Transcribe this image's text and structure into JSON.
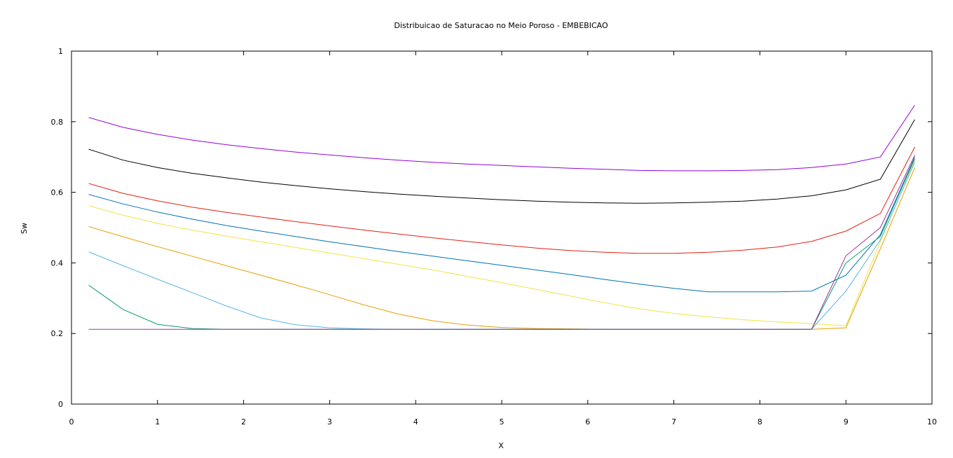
{
  "chart_data": {
    "type": "line",
    "title": "Distribuicao de Saturacao no Meio Poroso - EMBEBICAO",
    "xlabel": "X",
    "ylabel": "Sw",
    "xlim": [
      0,
      10
    ],
    "ylim": [
      0,
      1
    ],
    "x_ticks": [
      "0",
      "1",
      "2",
      "3",
      "4",
      "5",
      "6",
      "7",
      "8",
      "9",
      "10"
    ],
    "y_ticks": [
      "0",
      "0.2",
      "0.4",
      "0.6",
      "0.8",
      "1"
    ],
    "grid": false,
    "legend": "none",
    "x": [
      0.2,
      0.6,
      1.0,
      1.4,
      1.8,
      2.2,
      2.6,
      3.0,
      3.4,
      3.8,
      4.2,
      4.6,
      5.0,
      5.4,
      5.8,
      6.2,
      6.6,
      7.0,
      7.4,
      7.8,
      8.2,
      8.6,
      9.0,
      9.4,
      9.8
    ],
    "series": [
      {
        "color": "#9400d3",
        "values": [
          0.812,
          0.784,
          0.764,
          0.748,
          0.735,
          0.724,
          0.714,
          0.706,
          0.698,
          0.691,
          0.685,
          0.68,
          0.676,
          0.672,
          0.668,
          0.665,
          0.662,
          0.661,
          0.661,
          0.662,
          0.664,
          0.67,
          0.68,
          0.7,
          0.847
        ]
      },
      {
        "color": "#000000",
        "values": [
          0.722,
          0.691,
          0.67,
          0.654,
          0.641,
          0.629,
          0.619,
          0.61,
          0.602,
          0.595,
          0.589,
          0.584,
          0.579,
          0.575,
          0.572,
          0.57,
          0.569,
          0.57,
          0.572,
          0.575,
          0.581,
          0.59,
          0.607,
          0.637,
          0.806
        ]
      },
      {
        "color": "#e51e10",
        "values": [
          0.625,
          0.597,
          0.576,
          0.558,
          0.543,
          0.53,
          0.517,
          0.505,
          0.493,
          0.482,
          0.471,
          0.461,
          0.451,
          0.442,
          0.435,
          0.43,
          0.427,
          0.427,
          0.43,
          0.436,
          0.445,
          0.461,
          0.49,
          0.54,
          0.728
        ]
      },
      {
        "color": "#0072b2",
        "values": [
          0.594,
          0.567,
          0.544,
          0.524,
          0.506,
          0.49,
          0.475,
          0.46,
          0.446,
          0.432,
          0.419,
          0.406,
          0.393,
          0.38,
          0.367,
          0.353,
          0.34,
          0.328,
          0.318,
          0.318,
          0.318,
          0.32,
          0.365,
          0.48,
          0.7
        ]
      },
      {
        "color": "#f0e442",
        "values": [
          0.562,
          0.535,
          0.512,
          0.493,
          0.476,
          0.46,
          0.444,
          0.428,
          0.412,
          0.396,
          0.38,
          0.362,
          0.344,
          0.325,
          0.306,
          0.287,
          0.27,
          0.257,
          0.247,
          0.239,
          0.233,
          0.228,
          0.222,
          0.46,
          0.69
        ]
      },
      {
        "color": "#e69f00",
        "values": [
          0.503,
          0.474,
          0.446,
          0.419,
          0.392,
          0.365,
          0.338,
          0.31,
          0.281,
          0.255,
          0.236,
          0.224,
          0.217,
          0.214,
          0.213,
          0.212,
          0.212,
          0.212,
          0.212,
          0.212,
          0.212,
          0.212,
          0.216,
          0.44,
          0.67
        ]
      },
      {
        "color": "#56b4e9",
        "values": [
          0.431,
          0.392,
          0.354,
          0.316,
          0.278,
          0.244,
          0.225,
          0.216,
          0.213,
          0.212,
          0.212,
          0.212,
          0.212,
          0.212,
          0.212,
          0.212,
          0.212,
          0.212,
          0.212,
          0.212,
          0.212,
          0.212,
          0.32,
          0.465,
          0.685
        ]
      },
      {
        "color": "#009e73",
        "values": [
          0.337,
          0.268,
          0.226,
          0.214,
          0.212,
          0.212,
          0.212,
          0.212,
          0.212,
          0.212,
          0.212,
          0.212,
          0.212,
          0.212,
          0.212,
          0.212,
          0.212,
          0.212,
          0.212,
          0.212,
          0.212,
          0.212,
          0.4,
          0.475,
          0.695
        ]
      },
      {
        "color": "#a0359b",
        "values": [
          0.212,
          0.212,
          0.212,
          0.212,
          0.212,
          0.212,
          0.212,
          0.212,
          0.212,
          0.212,
          0.212,
          0.212,
          0.212,
          0.212,
          0.212,
          0.212,
          0.212,
          0.212,
          0.212,
          0.212,
          0.212,
          0.212,
          0.42,
          0.5,
          0.705
        ]
      }
    ]
  }
}
